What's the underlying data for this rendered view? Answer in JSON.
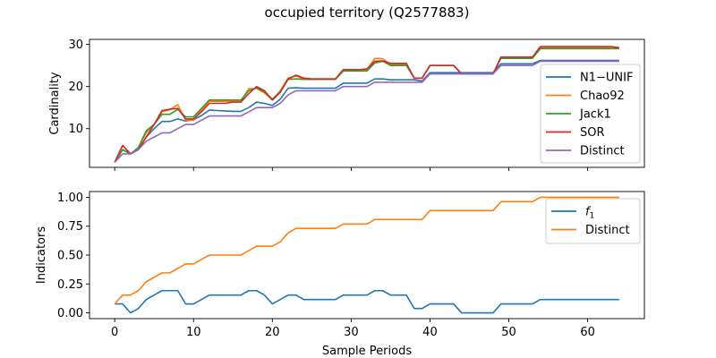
{
  "figure": {
    "title": "occupied territory (Q2577883)"
  },
  "chart_data": [
    {
      "type": "line",
      "ylabel": "Cardinality",
      "xlabel": "",
      "xlim": [
        -3.2,
        67.2
      ],
      "ylim": [
        0.8,
        31.2
      ],
      "xticks": [
        0,
        10,
        20,
        30,
        40,
        50,
        60
      ],
      "yticks": [
        10,
        20,
        30
      ],
      "ytick_labels": [
        "10",
        "20",
        "30"
      ],
      "legend_position": "right",
      "x": [
        0,
        1,
        2,
        3,
        4,
        5,
        6,
        7,
        8,
        9,
        10,
        11,
        12,
        13,
        14,
        15,
        16,
        17,
        18,
        19,
        20,
        21,
        22,
        23,
        24,
        25,
        26,
        27,
        28,
        29,
        30,
        31,
        32,
        33,
        34,
        35,
        36,
        37,
        38,
        39,
        40,
        41,
        42,
        43,
        44,
        45,
        46,
        47,
        48,
        49,
        50,
        51,
        52,
        53,
        54,
        55,
        56,
        57,
        58,
        59,
        60,
        61,
        62,
        63,
        64
      ],
      "series": [
        {
          "name": "N1−UNIF",
          "color": "#1f77b4",
          "values": [
            2,
            5,
            4,
            5,
            8,
            10,
            11.7,
            11.7,
            12.3,
            11.8,
            12.1,
            13.1,
            14.4,
            14.3,
            14.2,
            14.1,
            14.1,
            15,
            16.3,
            16,
            15.5,
            17,
            19.6,
            19.7,
            19.6,
            19.6,
            19.6,
            19.6,
            19.6,
            20.8,
            20.8,
            20.8,
            20.8,
            21.8,
            21.8,
            21.6,
            21.6,
            21.6,
            21.6,
            21.3,
            23.3,
            23.3,
            23.3,
            23.3,
            23.3,
            23.3,
            23.3,
            23.3,
            23.3,
            25.4,
            25.4,
            25.4,
            25.4,
            25.4,
            26.2,
            26.2,
            26.2,
            26.2,
            26.2,
            26.2,
            26.2,
            26.2,
            26.2,
            26.2,
            26.2
          ]
        },
        {
          "name": "Chao92",
          "color": "#ff7f0e",
          "values": [
            2,
            6,
            4,
            5.5,
            9,
            11,
            14,
            14.5,
            15.7,
            12,
            12,
            14.5,
            16.5,
            16.5,
            16.5,
            16.5,
            16.5,
            19.5,
            19.5,
            18.5,
            16.8,
            19,
            22,
            22.5,
            21.8,
            21.8,
            21.8,
            21.8,
            21.8,
            24,
            24,
            24,
            24,
            26.7,
            26.6,
            25.2,
            25.2,
            25.2,
            22,
            22,
            25,
            25,
            25,
            25,
            23,
            23,
            23,
            23,
            23,
            26.9,
            26.9,
            26.9,
            26.9,
            26.9,
            29.3,
            29.3,
            29.3,
            29.3,
            29.3,
            29.3,
            29.3,
            29.3,
            29.3,
            29.3,
            29.3
          ]
        },
        {
          "name": "Jack1",
          "color": "#2ca02c",
          "values": [
            2,
            5,
            4,
            5.5,
            9.5,
            11,
            13.4,
            13.4,
            14.6,
            12.8,
            12.8,
            14.8,
            16.8,
            16.8,
            16.8,
            16.8,
            16.8,
            19,
            19.7,
            18.7,
            17,
            18.8,
            21.7,
            21.8,
            21.7,
            21.7,
            21.7,
            21.7,
            21.7,
            23.7,
            23.7,
            23.7,
            23.7,
            25.6,
            26,
            25,
            25,
            25,
            22,
            22,
            25,
            25,
            25,
            25,
            23,
            23,
            23,
            23,
            23,
            26.7,
            26.7,
            26.7,
            26.7,
            26.7,
            29,
            29,
            29,
            29,
            29,
            29,
            29,
            29,
            29,
            29,
            29
          ]
        },
        {
          "name": "SOR",
          "color": "#d62728",
          "values": [
            2,
            6,
            4,
            5,
            8,
            11,
            14.3,
            14.6,
            14.8,
            12.3,
            12.3,
            14,
            16,
            16,
            16,
            16.3,
            16.3,
            18.3,
            20,
            19,
            16.8,
            18.6,
            21.8,
            22.7,
            22,
            21.8,
            21.8,
            21.8,
            21.8,
            24,
            24,
            24,
            24.2,
            26,
            26.1,
            25.5,
            25.5,
            25.5,
            22,
            22,
            25,
            25,
            25,
            25,
            23,
            23,
            23,
            23,
            23,
            27,
            27,
            27,
            27,
            27,
            29.5,
            29.5,
            29.5,
            29.5,
            29.5,
            29.5,
            29.5,
            29.5,
            29.5,
            29.5,
            29.2
          ]
        },
        {
          "name": "Distinct",
          "color": "#9467bd",
          "values": [
            2,
            4,
            4,
            5,
            7,
            8,
            9,
            9,
            10,
            11,
            11,
            12,
            13,
            13,
            13,
            13,
            13,
            14,
            15,
            15,
            15,
            16,
            18,
            19,
            19,
            19,
            19,
            19,
            19,
            20,
            20,
            20,
            20,
            21,
            21,
            21,
            21,
            21,
            21,
            21,
            23,
            23,
            23,
            23,
            23,
            23,
            23,
            23,
            23,
            25,
            25,
            25,
            25,
            25,
            26,
            26,
            26,
            26,
            26,
            26,
            26,
            26,
            26,
            26,
            26
          ]
        }
      ]
    },
    {
      "type": "line",
      "ylabel": "Indicators",
      "xlabel": "Sample Periods",
      "xlim": [
        -3.2,
        67.2
      ],
      "ylim": [
        -0.05,
        1.05
      ],
      "xticks": [
        0,
        10,
        20,
        30,
        40,
        50,
        60
      ],
      "yticks": [
        0,
        0.25,
        0.5,
        0.75,
        1.0
      ],
      "ytick_labels": [
        "0.00",
        "0.25",
        "0.50",
        "0.75",
        "1.00"
      ],
      "legend_position": "top-right",
      "x": [
        0,
        1,
        2,
        3,
        4,
        5,
        6,
        7,
        8,
        9,
        10,
        11,
        12,
        13,
        14,
        15,
        16,
        17,
        18,
        19,
        20,
        21,
        22,
        23,
        24,
        25,
        26,
        27,
        28,
        29,
        30,
        31,
        32,
        33,
        34,
        35,
        36,
        37,
        38,
        39,
        40,
        41,
        42,
        43,
        44,
        45,
        46,
        47,
        48,
        49,
        50,
        51,
        52,
        53,
        54,
        55,
        56,
        57,
        58,
        59,
        60,
        61,
        62,
        63,
        64
      ],
      "series": [
        {
          "name": "f1",
          "name_main": "f",
          "name_sub": "1",
          "color": "#1f77b4",
          "values": [
            0.077,
            0.077,
            0,
            0.038,
            0.115,
            0.154,
            0.192,
            0.192,
            0.192,
            0.077,
            0.077,
            0.115,
            0.154,
            0.154,
            0.154,
            0.154,
            0.154,
            0.192,
            0.192,
            0.154,
            0.077,
            0.115,
            0.154,
            0.154,
            0.115,
            0.115,
            0.115,
            0.115,
            0.115,
            0.154,
            0.154,
            0.154,
            0.154,
            0.192,
            0.192,
            0.154,
            0.154,
            0.154,
            0.038,
            0.038,
            0.077,
            0.077,
            0.077,
            0.077,
            0,
            0,
            0,
            0,
            0,
            0.077,
            0.077,
            0.077,
            0.077,
            0.077,
            0.115,
            0.115,
            0.115,
            0.115,
            0.115,
            0.115,
            0.115,
            0.115,
            0.115,
            0.115,
            0.115
          ]
        },
        {
          "name": "Distinct",
          "color": "#ff7f0e",
          "values": [
            0.077,
            0.154,
            0.154,
            0.192,
            0.269,
            0.308,
            0.346,
            0.346,
            0.385,
            0.423,
            0.423,
            0.462,
            0.5,
            0.5,
            0.5,
            0.5,
            0.5,
            0.538,
            0.577,
            0.577,
            0.577,
            0.615,
            0.692,
            0.731,
            0.731,
            0.731,
            0.731,
            0.731,
            0.731,
            0.769,
            0.769,
            0.769,
            0.769,
            0.808,
            0.808,
            0.808,
            0.808,
            0.808,
            0.808,
            0.808,
            0.885,
            0.885,
            0.885,
            0.885,
            0.885,
            0.885,
            0.885,
            0.885,
            0.885,
            0.962,
            0.962,
            0.962,
            0.962,
            0.962,
            1,
            1,
            1,
            1,
            1,
            1,
            1,
            1,
            1,
            1,
            1
          ]
        }
      ]
    }
  ]
}
